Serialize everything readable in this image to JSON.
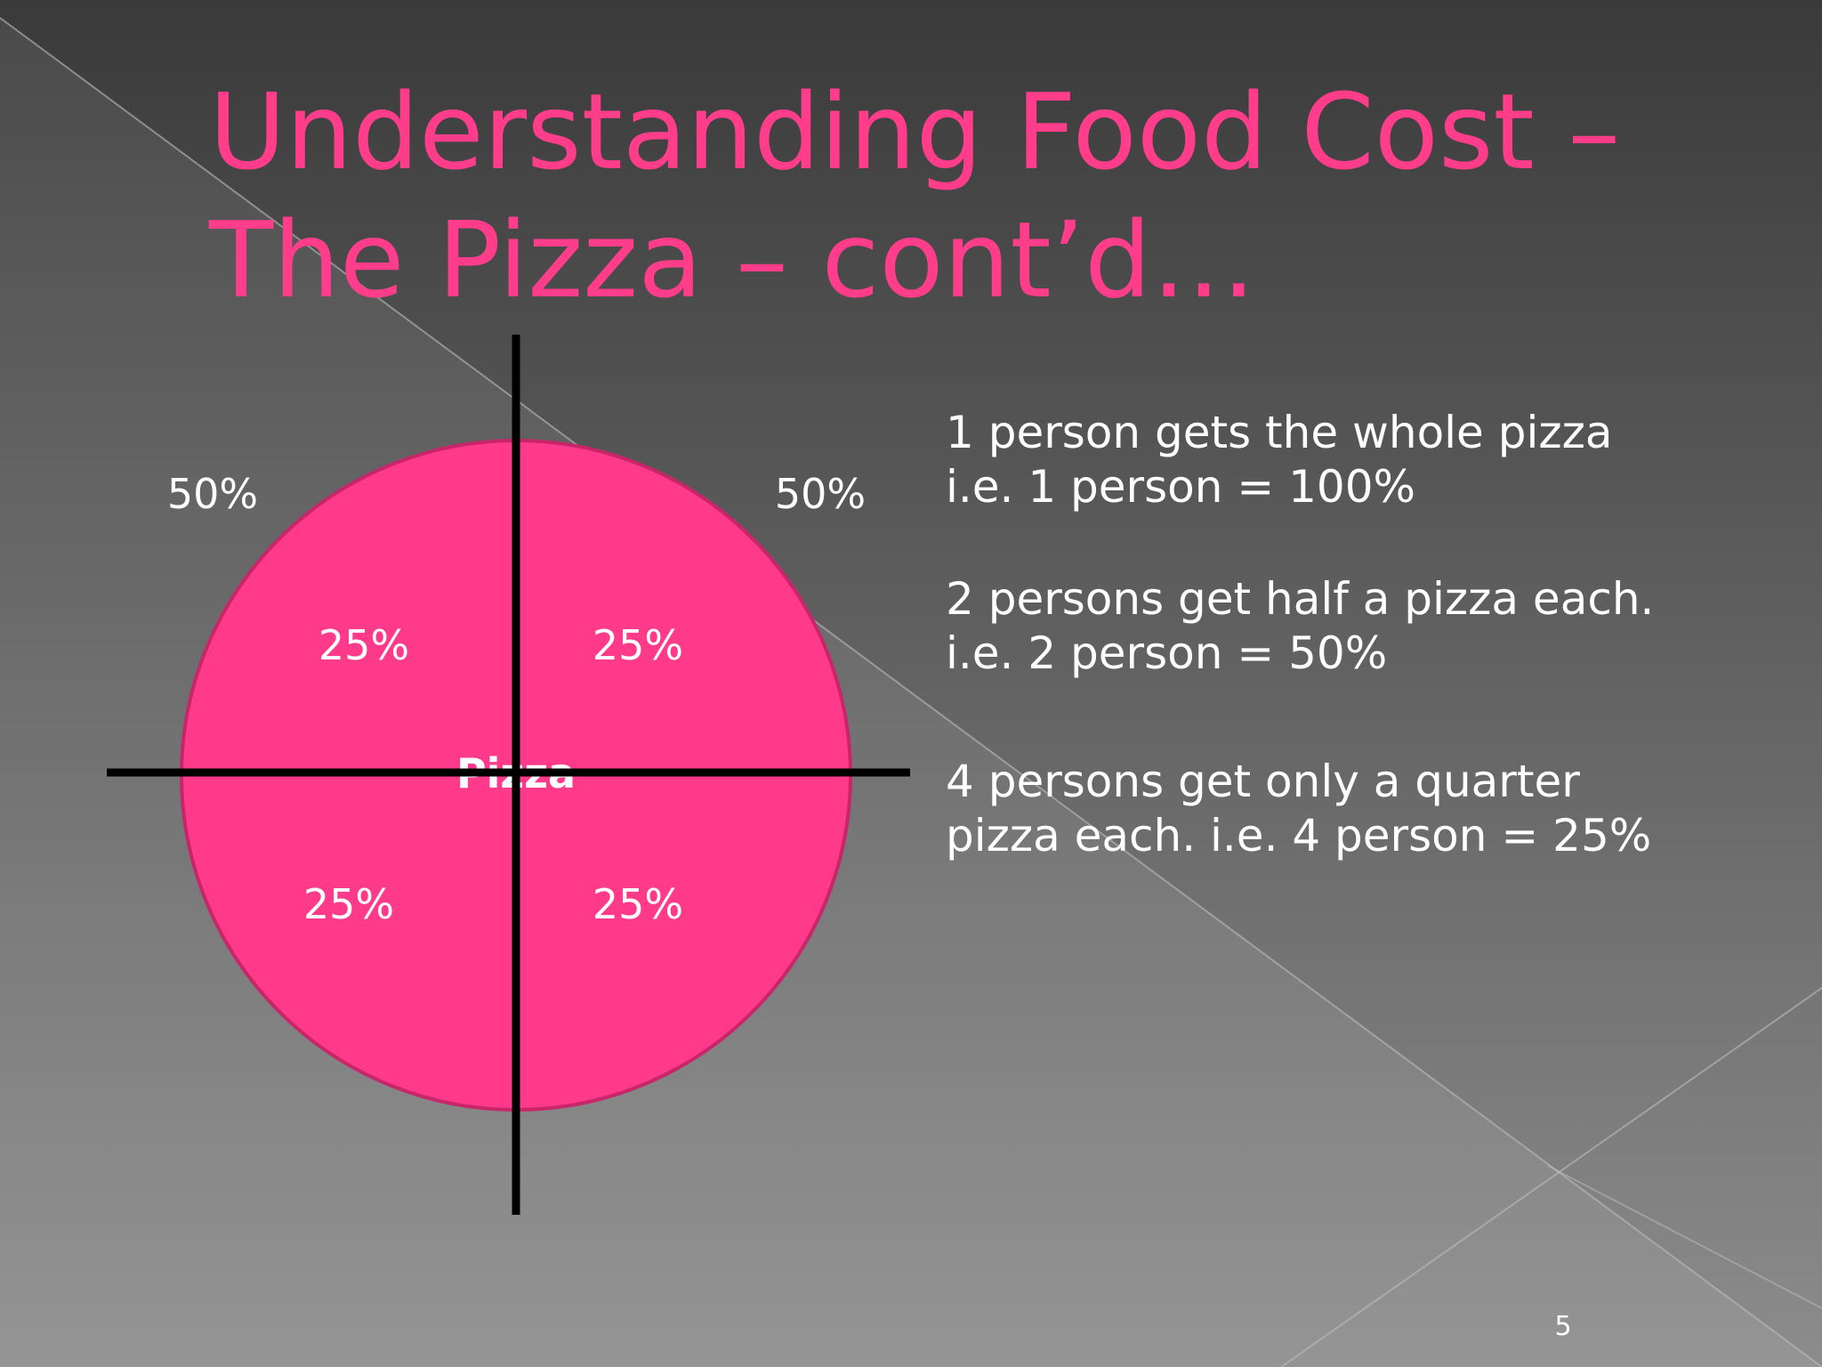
{
  "title": [
    "Understanding Food Cost –",
    "The Pizza – cont’d…"
  ],
  "diagram": {
    "center_label": "Pizza",
    "half_labels": [
      "50%",
      "50%"
    ],
    "quarter_labels": [
      "25%",
      "25%",
      "25%",
      "25%"
    ]
  },
  "paragraphs": [
    [
      "1 person  gets the whole pizza",
      "i.e. 1 person = 100%"
    ],
    [
      "2 persons  get half a pizza each.",
      "i.e. 2 person = 50%"
    ],
    [
      "4 persons  get only a quarter",
      "pizza each. i.e. 4 person = 25%"
    ]
  ],
  "slide_number": "5"
}
